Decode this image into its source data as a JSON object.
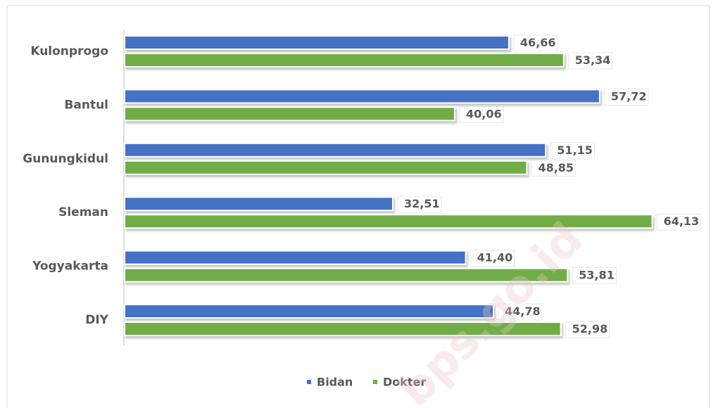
{
  "chart_data": {
    "type": "barh",
    "categories": [
      "Kulonprogo",
      "Bantul",
      "Gunungkidul",
      "Sleman",
      "Yogyakarta",
      "DIY"
    ],
    "series": [
      {
        "name": "Bidan",
        "color": "#4472c4",
        "values": [
          46.66,
          57.72,
          51.15,
          32.51,
          41.4,
          44.78
        ],
        "value_labels": [
          "46,66",
          "57,72",
          "51,15",
          "32,51",
          "41,40",
          "44,78"
        ]
      },
      {
        "name": "Dokter",
        "color": "#70ad47",
        "values": [
          53.34,
          40.06,
          48.85,
          64.13,
          53.81,
          52.98
        ],
        "value_labels": [
          "53,34",
          "40,06",
          "48,85",
          "64,13",
          "53,81",
          "52,98"
        ]
      }
    ],
    "xlim": [
      0,
      70
    ],
    "legend": "bottom",
    "watermark": "bps.go.id"
  }
}
